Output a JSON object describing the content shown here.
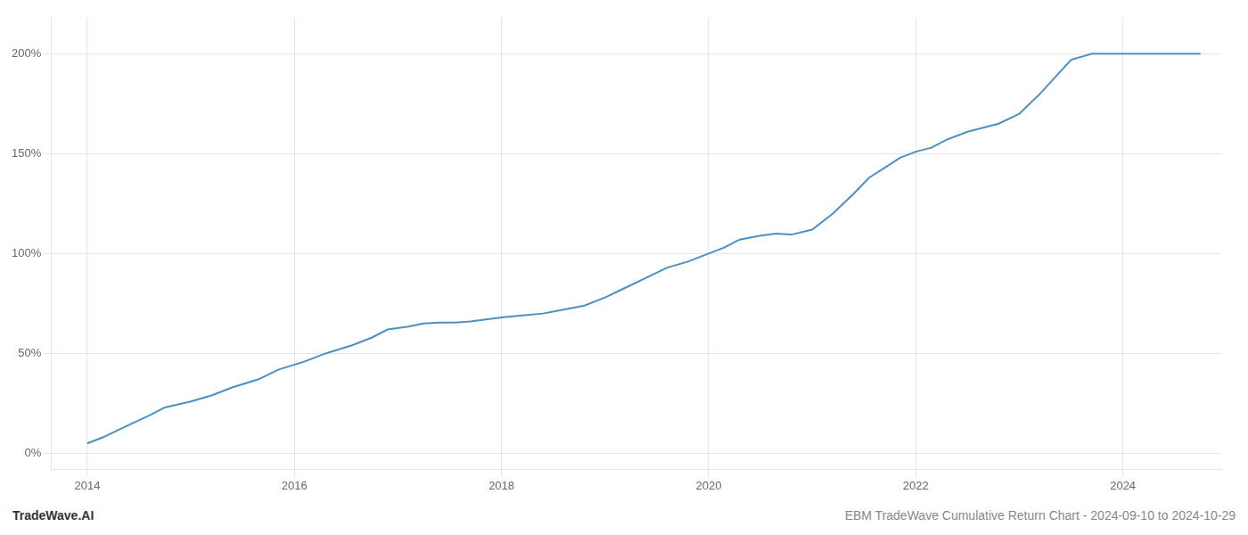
{
  "chart_data": {
    "type": "line",
    "x": [
      2014.0,
      2014.15,
      2014.35,
      2014.6,
      2014.75,
      2015.0,
      2015.2,
      2015.4,
      2015.65,
      2015.85,
      2016.1,
      2016.3,
      2016.55,
      2016.75,
      2016.9,
      2017.1,
      2017.25,
      2017.4,
      2017.55,
      2017.7,
      2017.85,
      2018.0,
      2018.2,
      2018.4,
      2018.6,
      2018.8,
      2019.0,
      2019.2,
      2019.4,
      2019.6,
      2019.8,
      2020.0,
      2020.15,
      2020.3,
      2020.5,
      2020.65,
      2020.8,
      2021.0,
      2021.2,
      2021.4,
      2021.55,
      2021.7,
      2021.85,
      2022.0,
      2022.15,
      2022.3,
      2022.5,
      2022.65,
      2022.8,
      2023.0,
      2023.2,
      2023.5,
      2023.7,
      2023.85,
      2024.0,
      2024.3,
      2024.6,
      2024.75
    ],
    "values": [
      5.0,
      8.0,
      13.0,
      19.0,
      23.0,
      26.0,
      29.0,
      33.0,
      37.0,
      42.0,
      46.0,
      50.0,
      54.0,
      58.0,
      62.0,
      63.5,
      65.0,
      65.5,
      65.5,
      66.0,
      67.0,
      68.0,
      69.0,
      70.0,
      72.0,
      74.0,
      78.0,
      83.0,
      88.0,
      93.0,
      96.0,
      100.0,
      103.0,
      107.0,
      109.0,
      110.0,
      109.5,
      112.0,
      120.0,
      130.0,
      138.0,
      143.0,
      148.0,
      151.0,
      153.0,
      157.0,
      161.0,
      163.0,
      165.0,
      170.0,
      180.0,
      197.0,
      200.0,
      200.0,
      200.0,
      200.0,
      200.0,
      200.0
    ],
    "color": "#4a90c4",
    "xlim": [
      2013.65,
      2024.95
    ],
    "ylim": [
      -8,
      218
    ],
    "xticks": [
      2014,
      2016,
      2018,
      2020,
      2022,
      2024
    ],
    "yticks": [
      {
        "value": 0,
        "label": "0%"
      },
      {
        "value": 50,
        "label": "50%"
      },
      {
        "value": 100,
        "label": "100%"
      },
      {
        "value": 150,
        "label": "150%"
      },
      {
        "value": 200,
        "label": "200%"
      }
    ],
    "grid": true,
    "annotations": [
      "TradeWave.AI",
      "EBM TradeWave Cumulative Return Chart - 2024-09-10 to 2024-10-29"
    ]
  }
}
